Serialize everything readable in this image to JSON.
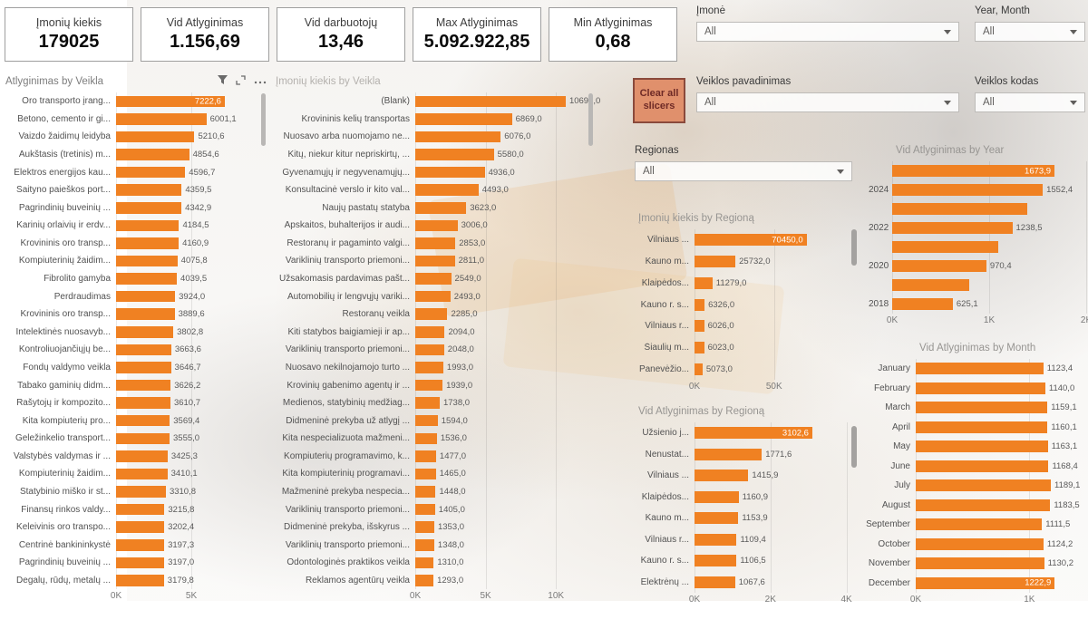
{
  "kpi_cards": [
    {
      "label": "Įmonių kiekis",
      "value": "179025"
    },
    {
      "label": "Vid Atlyginimas",
      "value": "1.156,69"
    },
    {
      "label": "Vid darbuotojų",
      "value": "13,46"
    },
    {
      "label": "Max Atlyginimas",
      "value": "5.092.922,85"
    },
    {
      "label": "Min Atlyginimas",
      "value": "0,68"
    }
  ],
  "slicers": {
    "imone": {
      "label": "Įmonė",
      "value": "All"
    },
    "year_month": {
      "label": "Year, Month",
      "value": "All"
    },
    "veiklos_pavadinimas": {
      "label": "Veiklos pavadinimas",
      "value": "All"
    },
    "veiklos_kodas": {
      "label": "Veiklos kodas",
      "value": "All"
    },
    "regionas": {
      "label": "Regionas",
      "value": "All"
    }
  },
  "buttons": {
    "clear_all": "Clear all slicers"
  },
  "toolbar_icons": [
    "filter-icon",
    "focus-mode-icon",
    "more-options-icon"
  ],
  "colors": {
    "bar": "#F08122",
    "clear_button_bg": "#E0906C",
    "clear_button_border": "#8A4A3C"
  },
  "chart_data": [
    {
      "type": "bar",
      "orientation": "horizontal",
      "title": "Atlyginimas by Veikla",
      "xmax": 10000,
      "x_ticks": [
        {
          "label": "0K",
          "value": 0
        },
        {
          "label": "5K",
          "value": 5000
        }
      ],
      "label_inside": [
        0
      ],
      "categories": [
        "Oro transporto įrang...",
        "Betono, cemento ir gi...",
        "Vaizdo žaidimų leidyba",
        "Aukštasis (tretinis) m...",
        "Elektros energijos kau...",
        "Saityno paieškos port...",
        "Pagrindinių buveinių ...",
        "Karinių orlaivių ir erdv...",
        "Krovininis oro transp...",
        "Kompiuterinių žaidim...",
        "Fibrolito gamyba",
        "Perdraudimas",
        "Krovininis oro transp...",
        "Intelektinės nuosavyb...",
        "Kontroliuojančiųjų be...",
        "Fondų valdymo veikla",
        "Tabako gaminių didm...",
        "Rašytojų ir kompozito...",
        "Kita kompiuterių pro...",
        "Geležinkelio transport...",
        "Valstybės valdymas ir ...",
        "Kompiuterinių žaidim...",
        "Statybinio miško ir st...",
        "Finansų rinkos valdy...",
        "Keleivinis oro transpo...",
        "Centrinė bankininkystė",
        "Pagrindinių buveinių ...",
        "Degalų, rūdų, metalų ..."
      ],
      "values": [
        7222.6,
        6001.1,
        5210.6,
        4854.6,
        4596.7,
        4359.5,
        4342.9,
        4184.5,
        4160.9,
        4075.8,
        4039.5,
        3924.0,
        3889.6,
        3802.8,
        3663.6,
        3646.7,
        3626.2,
        3610.7,
        3569.4,
        3555.0,
        3425.3,
        3410.1,
        3310.8,
        3215.8,
        3202.4,
        3197.3,
        3197.0,
        3179.8
      ],
      "value_labels": [
        "7222,6",
        "6001,1",
        "5210,6",
        "4854,6",
        "4596,7",
        "4359,5",
        "4342,9",
        "4184,5",
        "4160,9",
        "4075,8",
        "4039,5",
        "3924,0",
        "3889,6",
        "3802,8",
        "3663,6",
        "3646,7",
        "3626,2",
        "3610,7",
        "3569,4",
        "3555,0",
        "3425,3",
        "3410,1",
        "3310,8",
        "3215,8",
        "3202,4",
        "3197,3",
        "3197,0",
        "3179,8"
      ]
    },
    {
      "type": "bar",
      "orientation": "horizontal",
      "title": "Įmonių kiekis by Veikla",
      "xmax": 12500,
      "x_ticks": [
        {
          "label": "0K",
          "value": 0
        },
        {
          "label": "5K",
          "value": 5000
        },
        {
          "label": "10K",
          "value": 10000
        }
      ],
      "label_inside": [],
      "categories": [
        "(Blank)",
        "Krovininis kelių transportas",
        "Nuosavo arba nuomojamo ne...",
        "Kitų, niekur kitur nepriskirtų, ...",
        "Gyvenamųjų ir negyvenamųjų...",
        "Konsultacinė verslo ir kito val...",
        "Naujų pastatų statyba",
        "Apskaitos, buhalterijos ir audi...",
        "Restoranų ir pagaminto valgi...",
        "Variklinių transporto priemoni...",
        "Užsakomasis pardavimas pašt...",
        "Automobilių ir lengvųjų variki...",
        "Restoranų veikla",
        "Kiti statybos baigiamieji ir ap...",
        "Variklinių transporto priemoni...",
        "Nuosavo nekilnojamojo turto ...",
        "Krovinių gabenimo agentų ir ...",
        "Medienos, statybinių medžiag...",
        "Didmeninė prekyba už atlygį ...",
        "Kita nespecializuota mažmeni...",
        "Kompiuterių programavimo, k...",
        "Kita kompiuterinių programavi...",
        "Mažmeninė prekyba nespecia...",
        "Variklinių transporto priemoni...",
        "Didmeninė prekyba, išskyrus ...",
        "Variklinių transporto priemoni...",
        "Odontologinės praktikos veikla",
        "Reklamos agentūrų veikla"
      ],
      "values": [
        10693,
        6869,
        6076,
        5580,
        4936,
        4493,
        3623,
        3006,
        2853,
        2811,
        2549,
        2493,
        2285,
        2094,
        2048,
        1993,
        1939,
        1738,
        1594,
        1536,
        1477,
        1465,
        1448,
        1405,
        1353,
        1348,
        1310,
        1293
      ],
      "value_labels": [
        "10693,0",
        "6869,0",
        "6076,0",
        "5580,0",
        "4936,0",
        "4493,0",
        "3623,0",
        "3006,0",
        "2853,0",
        "2811,0",
        "2549,0",
        "2493,0",
        "2285,0",
        "2094,0",
        "2048,0",
        "1993,0",
        "1939,0",
        "1738,0",
        "1594,0",
        "1536,0",
        "1477,0",
        "1465,0",
        "1448,0",
        "1405,0",
        "1353,0",
        "1348,0",
        "1310,0",
        "1293,0"
      ]
    },
    {
      "type": "bar",
      "orientation": "horizontal",
      "title": "Įmonių kiekis by Regioną",
      "xmax": 106000,
      "x_ticks": [
        {
          "label": "0K",
          "value": 0
        },
        {
          "label": "50K",
          "value": 50000
        }
      ],
      "label_inside": [
        0
      ],
      "categories": [
        "Vilniaus ...",
        "Kauno m...",
        "Klaipėdos...",
        "Kauno r. s...",
        "Vilniaus r...",
        "Šiaulių m...",
        "Panevėžio..."
      ],
      "values": [
        70450,
        25732,
        11279,
        6326,
        6026,
        6023,
        5073
      ],
      "value_labels": [
        "70450,0",
        "25732,0",
        "11279,0",
        "6326,0",
        "6026,0",
        "6023,0",
        "5073,0"
      ]
    },
    {
      "type": "bar",
      "orientation": "horizontal",
      "title": "Vid Atlyginimas by Regioną",
      "xmax": 4440,
      "x_ticks": [
        {
          "label": "0K",
          "value": 0
        },
        {
          "label": "2K",
          "value": 2000
        },
        {
          "label": "4K",
          "value": 4000
        }
      ],
      "label_inside": [
        0
      ],
      "categories": [
        "Užsienio j...",
        "Nenustat...",
        "Vilniaus ...",
        "Klaipėdos...",
        "Kauno m...",
        "Vilniaus r...",
        "Kauno r. s...",
        "Elektrėnų ..."
      ],
      "values": [
        3102.6,
        1771.6,
        1415.9,
        1160.9,
        1153.9,
        1109.4,
        1106.5,
        1067.6
      ],
      "value_labels": [
        "3102,6",
        "1771,6",
        "1415,9",
        "1160,9",
        "1153,9",
        "1109,4",
        "1106,5",
        "1067,6"
      ]
    },
    {
      "type": "bar",
      "orientation": "horizontal",
      "title": "Vid Atlyginimas by Year",
      "xmax": 2000,
      "x_ticks": [
        {
          "label": "0K",
          "value": 0
        },
        {
          "label": "1K",
          "value": 1000
        },
        {
          "label": "2K",
          "value": 2000
        }
      ],
      "label_inside": [
        0
      ],
      "categories": [
        "",
        "2024",
        "",
        "2022",
        "",
        "2020",
        "",
        "2018"
      ],
      "values": [
        1673.9,
        1552.4,
        1390,
        1238.5,
        1090,
        970.4,
        790,
        625.1
      ],
      "value_labels": [
        "1673,9",
        "1552,4",
        "",
        "1238,5",
        "",
        "970,4",
        "",
        "625,1"
      ]
    },
    {
      "type": "bar",
      "orientation": "horizontal",
      "title": "Vid Atlyginimas by Month",
      "xmax": 1500,
      "x_ticks": [
        {
          "label": "0K",
          "value": 0
        },
        {
          "label": "1K",
          "value": 1000
        }
      ],
      "label_inside": [
        11
      ],
      "categories": [
        "January",
        "February",
        "March",
        "April",
        "May",
        "June",
        "July",
        "August",
        "September",
        "October",
        "November",
        "December"
      ],
      "values": [
        1123.4,
        1140.0,
        1159.1,
        1160.1,
        1163.1,
        1168.4,
        1189.1,
        1183.5,
        1111.5,
        1124.2,
        1130.2,
        1222.9
      ],
      "value_labels": [
        "1123,4",
        "1140,0",
        "1159,1",
        "1160,1",
        "1163,1",
        "1168,4",
        "1189,1",
        "1183,5",
        "1111,5",
        "1124,2",
        "1130,2",
        "1222,9"
      ]
    }
  ]
}
